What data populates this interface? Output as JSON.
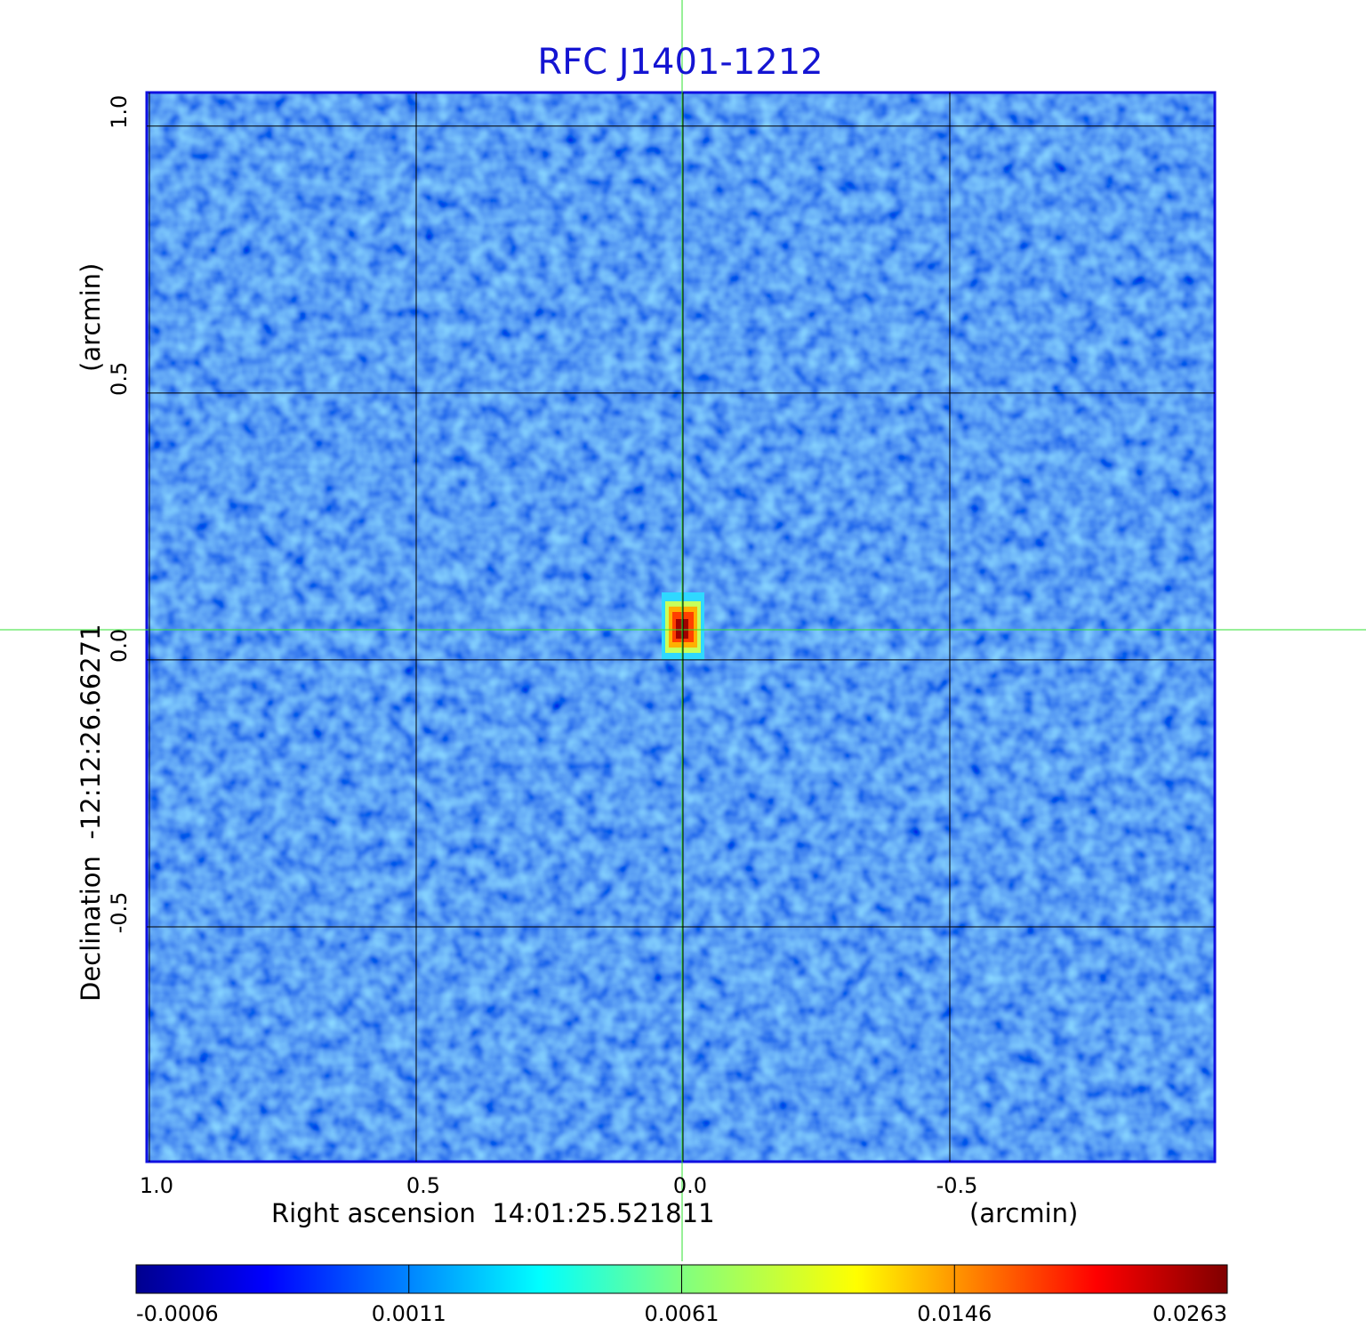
{
  "chart_data": {
    "type": "image",
    "title": "RFC J1401-1212",
    "x_label": "Right ascension  14:01:25.521811",
    "x_unit": "(arcmin)",
    "y_label": "Declination  -12:12:26.66271",
    "y_unit": "(arcmin)",
    "xlim": [
      1.0,
      -1.0
    ],
    "ylim": [
      -0.94,
      1.063
    ],
    "xticks": [
      {
        "value": 1.0,
        "label": "1.0"
      },
      0.5,
      {
        "value": 0.0,
        "label": "0.0"
      },
      -0.5
    ],
    "yticks": [
      {
        "value": 1.0,
        "label": "1.0"
      },
      0.5,
      {
        "value": 0.0,
        "label": "0.0"
      },
      -0.5
    ],
    "grid": true,
    "colorbar": {
      "ticks": [
        -0.0006,
        0.0011,
        0.0061,
        0.0146,
        0.0263
      ]
    }
  }
}
